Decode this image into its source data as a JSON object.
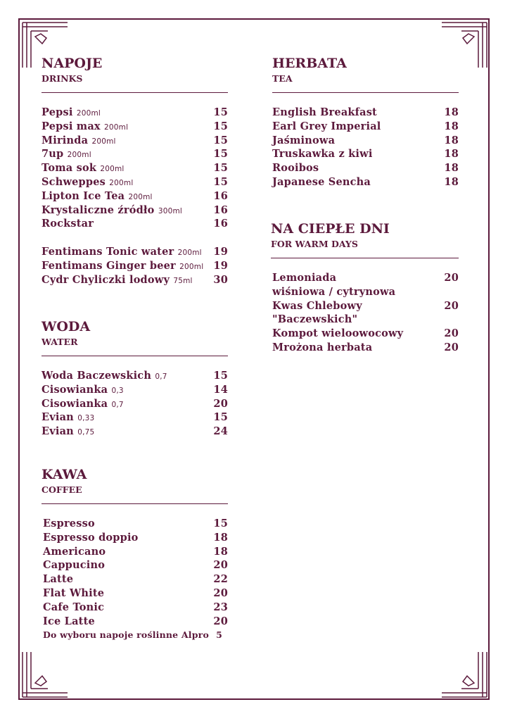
{
  "colors": {
    "accent": "#5c1a3c"
  },
  "drinks": {
    "title": "NAPOJE",
    "subtitle": "DRINKS",
    "items": [
      {
        "name": "Pepsi",
        "size": "200ml",
        "price": "15"
      },
      {
        "name": "Pepsi max",
        "size": "200ml",
        "price": "15"
      },
      {
        "name": "Mirinda",
        "size": "200ml",
        "price": "15"
      },
      {
        "name": "7up",
        "size": "200ml",
        "price": "15"
      },
      {
        "name": "Toma sok",
        "size": "200ml",
        "price": "15"
      },
      {
        "name": "Schweppes",
        "size": "200ml",
        "price": "15"
      },
      {
        "name": "Lipton Ice Tea",
        "size": "200ml",
        "price": "16"
      },
      {
        "name": "Krystaliczne źródło",
        "size": "300ml",
        "price": "16"
      },
      {
        "name": "Rockstar",
        "size": "",
        "price": "16"
      }
    ],
    "items2": [
      {
        "name": "Fentimans Tonic water",
        "size": "200ml",
        "price": "19"
      },
      {
        "name": "Fentimans Ginger beer",
        "size": "200ml",
        "price": "19"
      },
      {
        "name": "Cydr Chyliczki lodowy",
        "size": "75ml",
        "price": "30"
      }
    ]
  },
  "water": {
    "title": "WODA",
    "subtitle": "WATER",
    "items": [
      {
        "name": "Woda Baczewskich",
        "size": "0,7",
        "price": "15"
      },
      {
        "name": "Cisowianka",
        "size": "0,3",
        "price": "14"
      },
      {
        "name": "Cisowianka",
        "size": "0,7",
        "price": "20"
      },
      {
        "name": "Evian",
        "size": "0,33",
        "price": "15"
      },
      {
        "name": "Evian",
        "size": "0,75",
        "price": "24"
      }
    ]
  },
  "coffee": {
    "title": "KAWA",
    "subtitle": "COFFEE",
    "items": [
      {
        "name": "Espresso",
        "price": "15"
      },
      {
        "name": "Espresso doppio",
        "price": "18"
      },
      {
        "name": "Americano",
        "price": "18"
      },
      {
        "name": "Cappucino",
        "price": "20"
      },
      {
        "name": "Latte",
        "price": "22"
      },
      {
        "name": "Flat White",
        "price": "20"
      },
      {
        "name": "Cafe Tonic",
        "price": "23"
      },
      {
        "name": "Ice Latte",
        "price": "20"
      }
    ],
    "note": {
      "name": "Do wyboru napoje roślinne Alpro",
      "price": "5"
    }
  },
  "tea": {
    "title": "HERBATA",
    "subtitle": "TEA",
    "items": [
      {
        "name": "English Breakfast",
        "price": "18"
      },
      {
        "name": "Earl Grey Imperial",
        "price": "18"
      },
      {
        "name": "Jaśminowa",
        "price": "18"
      },
      {
        "name": "Truskawka z kiwi",
        "price": "18"
      },
      {
        "name": "Rooibos",
        "price": "18"
      },
      {
        "name": "Japanese Sencha",
        "price": "18"
      }
    ]
  },
  "warm": {
    "title": "NA CIEPŁE DNI",
    "subtitle": "FOR WARM DAYS",
    "items": [
      {
        "name": "Lemoniada",
        "price": "20"
      },
      {
        "name": "wiśniowa / cytrynowa",
        "price": ""
      },
      {
        "name": "Kwas Chlebowy",
        "price": "20"
      },
      {
        "name": "\"Baczewskich\"",
        "price": ""
      },
      {
        "name": "Kompot wieloowocowy",
        "price": "20"
      },
      {
        "name": "Mrożona herbata",
        "price": "20"
      }
    ]
  }
}
